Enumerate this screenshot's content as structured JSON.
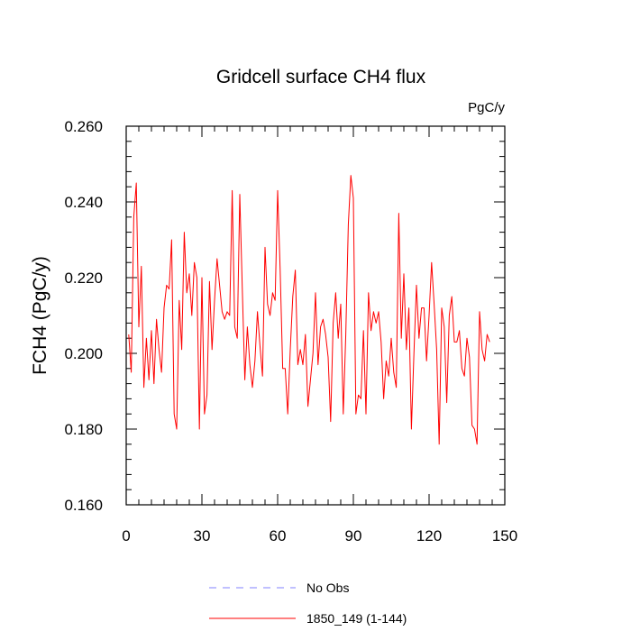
{
  "chart_data": {
    "type": "line",
    "title": "Gridcell surface CH4 flux",
    "units": "PgC/y",
    "ylabel": "FCH4  (PgC/y)",
    "xlabel": "",
    "xlim": [
      0,
      150
    ],
    "ylim": [
      0.16,
      0.26
    ],
    "xticks": [
      0,
      30,
      60,
      90,
      120,
      150
    ],
    "yticks": [
      0.16,
      0.18,
      0.2,
      0.22,
      0.24,
      0.26
    ],
    "ytick_labels": [
      "0.160",
      "0.180",
      "0.200",
      "0.220",
      "0.240",
      "0.260"
    ],
    "grid": false,
    "legend_position": "bottom",
    "legend": [
      {
        "name": "No Obs",
        "color": "#8080ff",
        "style": "dashed"
      },
      {
        "name": "1850_149 (1-144)",
        "color": "#ff0000",
        "style": "solid"
      }
    ],
    "series": [
      {
        "name": "1850_149 (1-144)",
        "color": "#ff0000",
        "x": [
          1,
          2,
          3,
          4,
          5,
          6,
          7,
          8,
          9,
          10,
          11,
          12,
          13,
          14,
          15,
          16,
          17,
          18,
          19,
          20,
          21,
          22,
          23,
          24,
          25,
          26,
          27,
          28,
          29,
          30,
          31,
          32,
          33,
          34,
          35,
          36,
          37,
          38,
          39,
          40,
          41,
          42,
          43,
          44,
          45,
          46,
          47,
          48,
          49,
          50,
          51,
          52,
          53,
          54,
          55,
          56,
          57,
          58,
          59,
          60,
          61,
          62,
          63,
          64,
          65,
          66,
          67,
          68,
          69,
          70,
          71,
          72,
          73,
          74,
          75,
          76,
          77,
          78,
          79,
          80,
          81,
          82,
          83,
          84,
          85,
          86,
          87,
          88,
          89,
          90,
          91,
          92,
          93,
          94,
          95,
          96,
          97,
          98,
          99,
          100,
          101,
          102,
          103,
          104,
          105,
          106,
          107,
          108,
          109,
          110,
          111,
          112,
          113,
          114,
          115,
          116,
          117,
          118,
          119,
          120,
          121,
          122,
          123,
          124,
          125,
          126,
          127,
          128,
          129,
          130,
          131,
          132,
          133,
          134,
          135,
          136,
          137,
          138,
          139,
          140,
          141,
          142,
          143,
          144
        ],
        "y": [
          0.205,
          0.195,
          0.236,
          0.245,
          0.207,
          0.223,
          0.191,
          0.204,
          0.193,
          0.206,
          0.192,
          0.209,
          0.201,
          0.195,
          0.212,
          0.218,
          0.217,
          0.23,
          0.184,
          0.18,
          0.214,
          0.201,
          0.232,
          0.216,
          0.221,
          0.21,
          0.224,
          0.22,
          0.18,
          0.22,
          0.184,
          0.189,
          0.219,
          0.201,
          0.214,
          0.225,
          0.218,
          0.211,
          0.209,
          0.211,
          0.21,
          0.243,
          0.207,
          0.204,
          0.242,
          0.217,
          0.193,
          0.207,
          0.197,
          0.191,
          0.198,
          0.211,
          0.202,
          0.194,
          0.228,
          0.213,
          0.21,
          0.216,
          0.214,
          0.243,
          0.222,
          0.196,
          0.196,
          0.184,
          0.201,
          0.215,
          0.222,
          0.197,
          0.201,
          0.197,
          0.205,
          0.186,
          0.193,
          0.2,
          0.216,
          0.197,
          0.207,
          0.209,
          0.205,
          0.199,
          0.182,
          0.208,
          0.216,
          0.204,
          0.213,
          0.184,
          0.205,
          0.234,
          0.247,
          0.241,
          0.184,
          0.189,
          0.188,
          0.206,
          0.184,
          0.216,
          0.206,
          0.211,
          0.208,
          0.211,
          0.203,
          0.188,
          0.198,
          0.194,
          0.204,
          0.195,
          0.191,
          0.237,
          0.204,
          0.221,
          0.201,
          0.212,
          0.18,
          0.2,
          0.218,
          0.204,
          0.212,
          0.212,
          0.198,
          0.21,
          0.224,
          0.213,
          0.201,
          0.176,
          0.212,
          0.207,
          0.187,
          0.21,
          0.215,
          0.203,
          0.203,
          0.206,
          0.196,
          0.194,
          0.204,
          0.199,
          0.181,
          0.18,
          0.176,
          0.211,
          0.201,
          0.198,
          0.205,
          0.203
        ]
      }
    ]
  }
}
